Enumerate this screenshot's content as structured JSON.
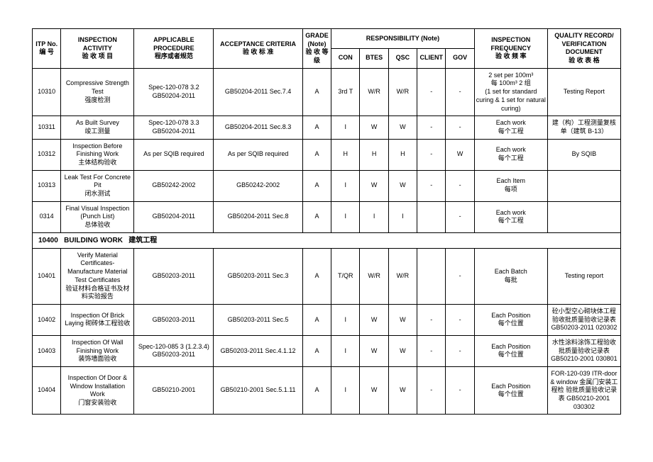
{
  "headers": {
    "itp_no": "ITP\nNo.",
    "itp_no_cn": "编 号",
    "activity": "INSPECTION ACTIVITY",
    "activity_cn": "验 收 项 目",
    "procedure": "APPLICABLE PROCEDURE",
    "procedure_cn": "程序或者规范",
    "criteria": "ACCEPTANCE CRITERIA",
    "criteria_cn": "验 收 标 准",
    "grade": "GRADE (Note)",
    "grade_cn": "验 收\n等 级",
    "responsibility": "RESPONSIBILITY  (Note)",
    "con": "CON",
    "btes": "BTES",
    "qsc": "QSC",
    "client": "CLIENT",
    "gov": "GOV",
    "frequency": "INSPECTION FREQUENCY",
    "frequency_cn": "验 收 频 率",
    "document": "QUALITY RECORD/ VERIFICATION DOCUMENT",
    "document_cn": "验 收 表 格"
  },
  "section": {
    "no": "10400",
    "title": "BUILDING WORK",
    "title_cn": "建筑工程"
  },
  "rows": [
    {
      "no": "10310",
      "activity": "Compressive Strength Test\n强度检测",
      "procedure": "Spec-120-078 3.2\nGB50204-2011",
      "criteria": "GB50204-2011 Sec.7.4",
      "grade": "A",
      "con": "3rd T",
      "btes": "W/R",
      "qsc": "W/R",
      "client": "-",
      "gov": "-",
      "frequency": "2 set  per 100m³\n每 100m³ 2 组\n(1 set for standard curing & 1 set for natural curing)",
      "document": "Testing Report"
    },
    {
      "no": "10311",
      "activity": "As Built Survey\n竣工测量",
      "procedure": "Spec-120-078 3.3\nGB50204-2011",
      "criteria": "GB50204-2011 Sec.8.3",
      "grade": "A",
      "con": "I",
      "btes": "W",
      "qsc": "W",
      "client": "-",
      "gov": "-",
      "frequency": "Each work\n每个工程",
      "document": "建（构）工程测量复核单（建筑 B-13）"
    },
    {
      "no": "10312",
      "activity": "Inspection Before Finishing Work\n主体结构验收",
      "procedure": "As per SQIB required",
      "criteria": "As per SQIB required",
      "grade": "A",
      "con": "H",
      "btes": "H",
      "qsc": "H",
      "client": "-",
      "gov": "W",
      "frequency": "Each work\n每个工程",
      "document": "By SQIB"
    },
    {
      "no": "10313",
      "activity": "Leak Test For Concrete Pit\n闭水测试",
      "procedure": "GB50242-2002",
      "criteria": "GB50242-2002",
      "grade": "A",
      "con": "I",
      "btes": "W",
      "qsc": "W",
      "client": "-",
      "gov": "-",
      "frequency": "Each Item\n每项",
      "document": ""
    },
    {
      "no": "0314",
      "activity": "Final Visual Inspection (Punch List)\n总体验收",
      "procedure": "GB50204-2011",
      "criteria": "GB50204-2011 Sec.8",
      "grade": "A",
      "con": "I",
      "btes": "I",
      "qsc": "I",
      "client": "",
      "gov": "-",
      "frequency": "Each work\n每个工程",
      "document": ""
    },
    {
      "no": "10401",
      "activity": "Verify Material Certificates- Manufacture Material Test Certificates\n验证材料合格证书及材料实验报告",
      "procedure": "GB50203-2011",
      "criteria": "GB50203-2011 Sec.3",
      "grade": "A",
      "con": "T/QR",
      "btes": "W/R",
      "qsc": "W/R",
      "client": "",
      "gov": "-",
      "frequency": "Each Batch\n每批",
      "document": "Testing report"
    },
    {
      "no": "10402",
      "activity": "Inspection Of Brick Laying 砌砖体工程验收",
      "procedure": "GB50203-2011",
      "criteria": "GB50203-2011 Sec.5",
      "grade": "A",
      "con": "I",
      "btes": "W",
      "qsc": "W",
      "client": "-",
      "gov": "-",
      "frequency": "Each Position\n每个位置",
      "document": "砼小型空心砌块体工程验收批质量验收记录表 GB50203-2011 020302"
    },
    {
      "no": "10403",
      "activity": "Inspection Of Wall Finishing Work\n装饰墙面验收",
      "procedure": "Spec-120-085 3 (1.2.3.4)\nGB50203-2011",
      "criteria": "GB50203-2011 Sec.4.1.12",
      "grade": "A",
      "con": "I",
      "btes": "W",
      "qsc": "W",
      "client": "-",
      "gov": "-",
      "frequency": "Each Position\n每个位置",
      "document": "水性涂料涂饰工程验收批质量验收记录表 GB50210-2001 030801"
    },
    {
      "no": "10404",
      "activity": "Inspection Of Door & Window Installation Work\n门窗安装验收",
      "procedure": "GB50210-2001",
      "criteria": "GB50210-2001 Sec.5.1.11",
      "grade": "A",
      "con": "I",
      "btes": "W",
      "qsc": "W",
      "client": "-",
      "gov": "-",
      "frequency": "Each Position\n每个位置",
      "document": "FOR-120-039 ITR-door & window 金属门安装工程检 验批质量验收记录 表 GB50210-2001 030302"
    }
  ]
}
